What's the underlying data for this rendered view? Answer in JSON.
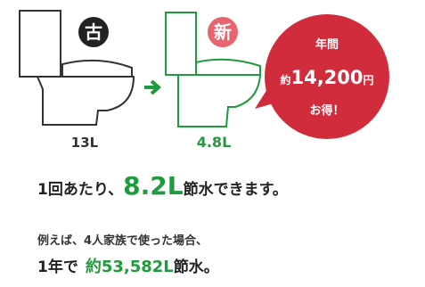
{
  "badges": {
    "old": "古",
    "new": "新"
  },
  "toilets": {
    "old_volume": "13L",
    "new_volume": "4.8L"
  },
  "bubble": {
    "line1": "年間",
    "prefix": "約",
    "amount": "14,200",
    "unit": "円",
    "line3": "お得！"
  },
  "per_flush": {
    "lead": "1回あたり、",
    "amount": "8.2L",
    "tail": "節水できます。"
  },
  "example": {
    "condition": "例えば、4人家族で使った場合、",
    "lead": "1年で",
    "amount": "約53,582L",
    "tail": "節水。"
  }
}
